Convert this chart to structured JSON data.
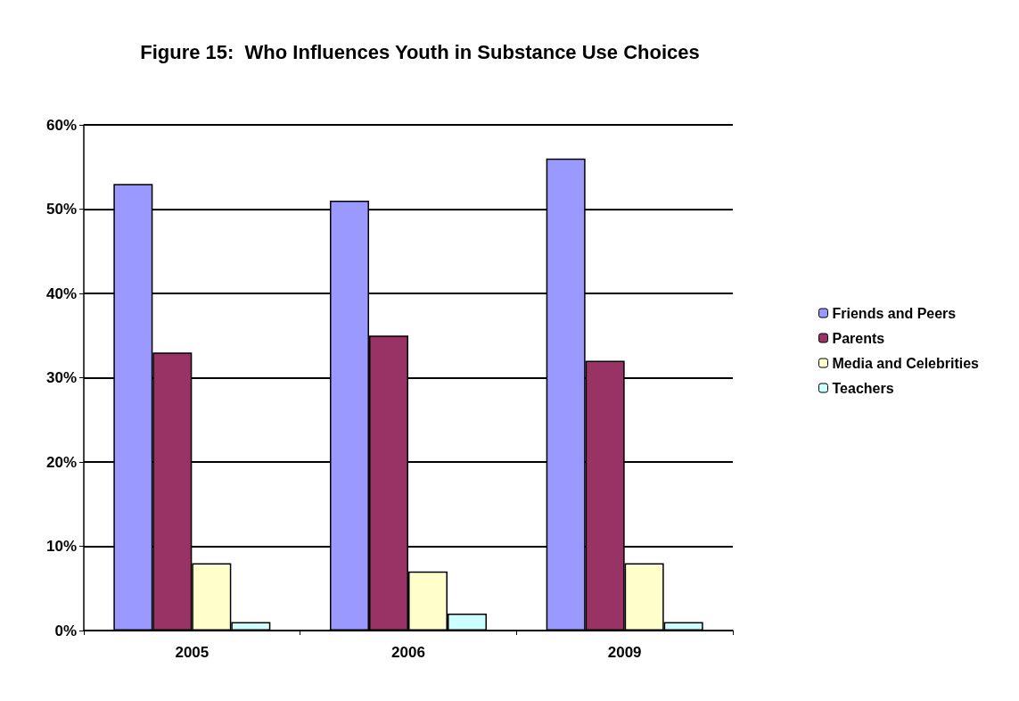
{
  "chart_data": {
    "type": "bar",
    "title": "Figure 15:  Who Influences Youth in Substance Use Choices",
    "categories": [
      "2005",
      "2006",
      "2009"
    ],
    "series": [
      {
        "name": "Friends and Peers",
        "color": "#9999ff",
        "values": [
          0.53,
          0.51,
          0.56
        ]
      },
      {
        "name": "Parents",
        "color": "#993366",
        "values": [
          0.33,
          0.35,
          0.32
        ]
      },
      {
        "name": "Media and Celebrities",
        "color": "#ffffcc",
        "values": [
          0.08,
          0.07,
          0.08
        ]
      },
      {
        "name": "Teachers",
        "color": "#ccffff",
        "values": [
          0.01,
          0.02,
          0.01
        ]
      }
    ],
    "ylim": [
      0,
      0.6
    ],
    "yticks": [
      {
        "value": 0,
        "label": "0%"
      },
      {
        "value": 0.1,
        "label": "10%"
      },
      {
        "value": 0.2,
        "label": "20%"
      },
      {
        "value": 0.3,
        "label": "30%"
      },
      {
        "value": 0.4,
        "label": "40%"
      },
      {
        "value": 0.5,
        "label": "50%"
      },
      {
        "value": 0.6,
        "label": "60%"
      }
    ],
    "grid": true,
    "legend": "right"
  }
}
